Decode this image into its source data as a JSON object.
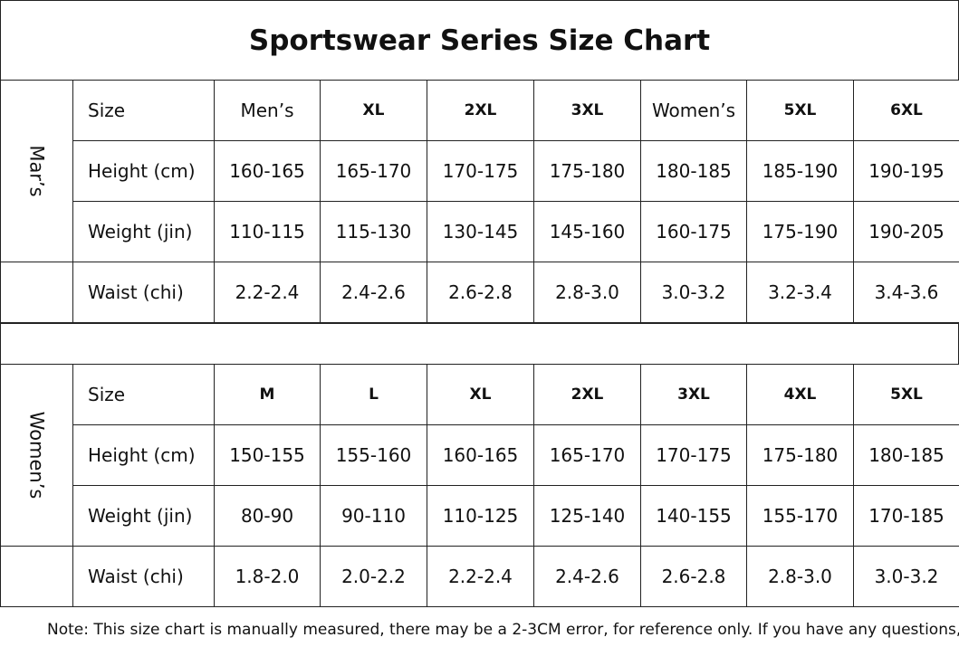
{
  "title": "Sportswear Series Size Chart",
  "sections": [
    {
      "label": "Mar’s",
      "rows": [
        [
          "Size",
          "Men’s",
          "XL",
          "2XL",
          "3XL",
          "Women’s",
          "5XL",
          "6XL"
        ],
        [
          "Height (cm)",
          "160-165",
          "165-170",
          "170-175",
          "175-180",
          "180-185",
          "185-190",
          "190-195"
        ],
        [
          "Weight (jin)",
          "110-115",
          "115-130",
          "130-145",
          "145-160",
          "160-175",
          "175-190",
          "190-205"
        ],
        [
          "Waist (chi)",
          "2.2-2.4",
          "2.4-2.6",
          "2.6-2.8",
          "2.8-3.0",
          "3.0-3.2",
          "3.2-3.4",
          "3.4-3.6"
        ]
      ]
    },
    {
      "label": "Women’s",
      "rows": [
        [
          "Size",
          "M",
          "L",
          "XL",
          "2XL",
          "3XL",
          "4XL",
          "5XL"
        ],
        [
          "Height (cm)",
          "150-155",
          "155-160",
          "160-165",
          "165-170",
          "170-175",
          "175-180",
          "180-185"
        ],
        [
          "Weight (jin)",
          "80-90",
          "90-110",
          "110-125",
          "125-140",
          "140-155",
          "155-170",
          "170-185"
        ],
        [
          "Waist (chi)",
          "1.8-2.0",
          "2.0-2.2",
          "2.2-2.4",
          "2.4-2.6",
          "2.6-2.8",
          "2.8-3.0",
          "3.0-3.2"
        ]
      ]
    }
  ],
  "note": "Note: This size chart is manually measured, there may be a 2-3CM error, for reference only. If you have any questions,"
}
